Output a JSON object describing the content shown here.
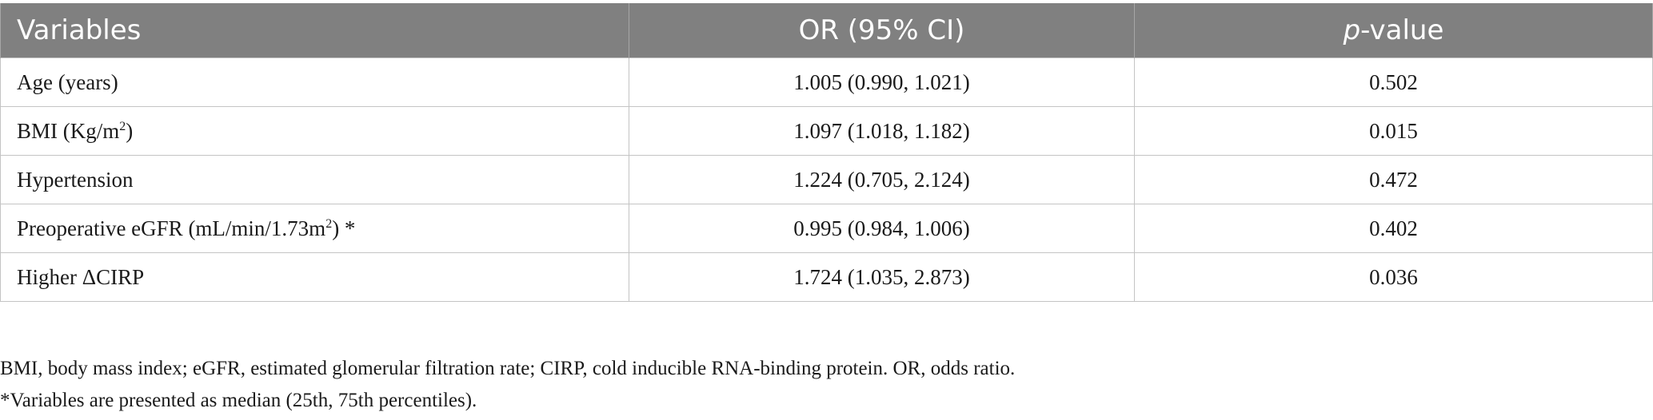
{
  "table": {
    "headers": {
      "variables": "Variables",
      "or": "OR (95% CI)",
      "p_italic": "p",
      "p_rest": "-value"
    },
    "rows": [
      {
        "var_main": "Age (years)",
        "var_sup": "",
        "var_tail": "",
        "or": "1.005 (0.990, 1.021)",
        "p": "0.502"
      },
      {
        "var_main": "BMI (Kg/m",
        "var_sup": "2",
        "var_tail": ")",
        "or": "1.097 (1.018, 1.182)",
        "p": "0.015"
      },
      {
        "var_main": "Hypertension",
        "var_sup": "",
        "var_tail": "",
        "or": "1.224 (0.705, 2.124)",
        "p": "0.472"
      },
      {
        "var_main": "Preoperative eGFR (mL/min/1.73m",
        "var_sup": "2",
        "var_tail": ") *",
        "or": "0.995 (0.984, 1.006)",
        "p": "0.402"
      },
      {
        "var_main": "Higher ΔCIRP",
        "var_sup": "",
        "var_tail": "",
        "or": "1.724 (1.035, 2.873)",
        "p": "0.036"
      }
    ]
  },
  "footnotes": {
    "abbreviations": "BMI, body mass index; eGFR, estimated glomerular filtration rate; CIRP, cold inducible RNA-binding protein. OR, odds ratio.",
    "asterisk": "*Variables are presented as median (25th, 75th percentiles)."
  }
}
